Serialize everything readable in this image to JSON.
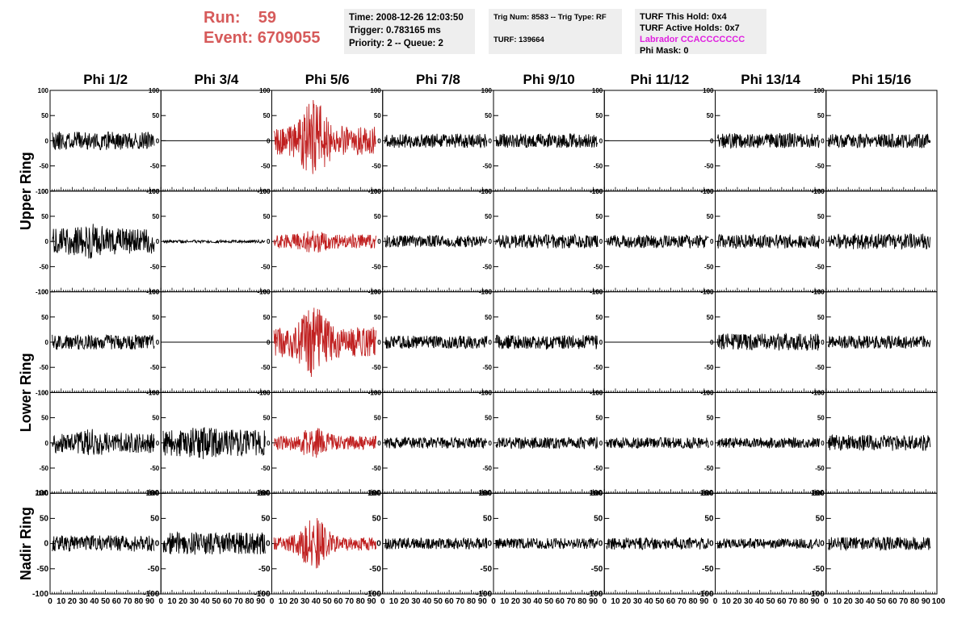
{
  "header": {
    "run_label": "Run:",
    "run_value": "59",
    "event_label": "Event:",
    "event_value": "6709055",
    "time": "Time: 2008-12-26 12:03:50",
    "trigger": "Trigger: 0.783165 ms",
    "priority": "Priority: 2 -- Queue: 2",
    "trig_num": "Trig Num: 8583 -- Trig Type: RF",
    "turf": "TURF: 139664",
    "turf_this_hold": "TURF This Hold: 0x4",
    "turf_active_holds": "TURF Active Holds: 0x7",
    "labrador": "Labrador CCACCCCCCC",
    "phi_mask": "Phi Mask: 0"
  },
  "colors": {
    "header_red": "#d65a5a",
    "trace_black": "#000000",
    "trace_red": "#c02020",
    "labrador_magenta": "#e020e0",
    "info_bg": "#eeeeee"
  },
  "chart_data": {
    "type": "line",
    "columns": [
      "Phi 1/2",
      "Phi 3/4",
      "Phi 5/6",
      "Phi 7/8",
      "Phi 9/10",
      "Phi 11/12",
      "Phi 13/14",
      "Phi 15/16"
    ],
    "ring_labels": [
      {
        "name": "Upper Ring",
        "rows": [
          0,
          1
        ]
      },
      {
        "name": "Lower Ring",
        "rows": [
          2,
          3
        ]
      },
      {
        "name": "Nadir Ring",
        "rows": [
          4
        ]
      }
    ],
    "xlim": [
      0,
      100
    ],
    "ylim": [
      -100,
      100
    ],
    "x_ticks": [
      0,
      10,
      20,
      30,
      40,
      50,
      60,
      70,
      80,
      90
    ],
    "y_ticks": [
      100,
      50,
      0,
      -50,
      -100
    ],
    "highlight_column": 2,
    "traces": [
      [
        {
          "amp": 18,
          "burst": 0,
          "seed": 11
        },
        {
          "amp": 0,
          "burst": 0,
          "seed": 12
        },
        {
          "amp": 28,
          "burst": 55,
          "seed": 13
        },
        {
          "amp": 14,
          "burst": 0,
          "seed": 14
        },
        {
          "amp": 14,
          "burst": 0,
          "seed": 15
        },
        {
          "amp": 0,
          "burst": 0,
          "seed": 16
        },
        {
          "amp": 15,
          "burst": 0,
          "seed": 17
        },
        {
          "amp": 14,
          "burst": 0,
          "seed": 18
        }
      ],
      [
        {
          "amp": 26,
          "burst": 10,
          "seed": 21
        },
        {
          "amp": 3,
          "burst": 0,
          "seed": 22
        },
        {
          "amp": 14,
          "burst": 10,
          "seed": 23
        },
        {
          "amp": 12,
          "burst": 0,
          "seed": 24
        },
        {
          "amp": 14,
          "burst": 0,
          "seed": 25
        },
        {
          "amp": 13,
          "burst": 0,
          "seed": 26
        },
        {
          "amp": 14,
          "burst": 0,
          "seed": 27
        },
        {
          "amp": 16,
          "burst": 0,
          "seed": 28
        }
      ],
      [
        {
          "amp": 15,
          "burst": 0,
          "seed": 31
        },
        {
          "amp": 0,
          "burst": 0,
          "seed": 32
        },
        {
          "amp": 30,
          "burst": 45,
          "seed": 33
        },
        {
          "amp": 13,
          "burst": 0,
          "seed": 34
        },
        {
          "amp": 14,
          "burst": 0,
          "seed": 35
        },
        {
          "amp": 0,
          "burst": 0,
          "seed": 36
        },
        {
          "amp": 17,
          "burst": 0,
          "seed": 37
        },
        {
          "amp": 13,
          "burst": 0,
          "seed": 38
        }
      ],
      [
        {
          "amp": 20,
          "burst": 8,
          "seed": 41
        },
        {
          "amp": 26,
          "burst": 8,
          "seed": 42
        },
        {
          "amp": 14,
          "burst": 18,
          "seed": 43
        },
        {
          "amp": 11,
          "burst": 0,
          "seed": 44
        },
        {
          "amp": 12,
          "burst": 0,
          "seed": 45
        },
        {
          "amp": 11,
          "burst": 0,
          "seed": 46
        },
        {
          "amp": 10,
          "burst": 0,
          "seed": 47
        },
        {
          "amp": 16,
          "burst": 0,
          "seed": 48
        }
      ],
      [
        {
          "amp": 16,
          "burst": 0,
          "seed": 51
        },
        {
          "amp": 22,
          "burst": 0,
          "seed": 52
        },
        {
          "amp": 14,
          "burst": 42,
          "seed": 53
        },
        {
          "amp": 11,
          "burst": 0,
          "seed": 54
        },
        {
          "amp": 11,
          "burst": 0,
          "seed": 55
        },
        {
          "amp": 12,
          "burst": 0,
          "seed": 56
        },
        {
          "amp": 10,
          "burst": 0,
          "seed": 57
        },
        {
          "amp": 13,
          "burst": 0,
          "seed": 58
        }
      ]
    ]
  }
}
